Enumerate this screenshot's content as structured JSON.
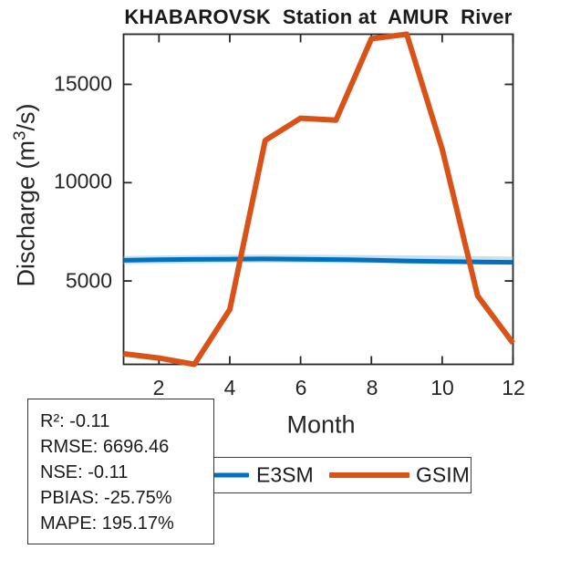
{
  "title": "KHABAROVSK  Station at  AMUR  River",
  "axes": {
    "xlabel": "Month",
    "ylabel_prefix": "Discharge (m",
    "ylabel_superscript": "3",
    "ylabel_suffix": "/s)"
  },
  "chart_data": {
    "type": "line",
    "title": "KHABAROVSK  Station at  AMUR  River",
    "xlabel": "Month",
    "ylabel": "Discharge (m^3/s)",
    "x": [
      1,
      2,
      3,
      4,
      5,
      6,
      7,
      8,
      9,
      10,
      11,
      12
    ],
    "series": [
      {
        "name": "E3SM",
        "color": "#0072BD",
        "width": 5,
        "values": [
          6050,
          6080,
          6100,
          6110,
          6120,
          6110,
          6090,
          6060,
          6020,
          5990,
          5970,
          5950
        ]
      },
      {
        "name": "GSIM",
        "color": "#D95319",
        "width": 6,
        "values": [
          1300,
          1080,
          760,
          3550,
          12150,
          13280,
          13180,
          17320,
          17550,
          11700,
          4250,
          1840
        ]
      }
    ],
    "e3sm_band": {
      "color": "#9cc7e6",
      "width": 9,
      "opacity": 0.55,
      "values": [
        6060,
        6090,
        6110,
        6125,
        6135,
        6125,
        6115,
        6105,
        6095,
        6080,
        6050,
        6030
      ]
    },
    "xlim": [
      1,
      12
    ],
    "ylim": [
      760,
      17550
    ],
    "xticks": [
      2,
      4,
      6,
      8,
      10,
      12
    ],
    "xtick_labels": [
      "2",
      "4",
      "6",
      "8",
      "10",
      "12"
    ],
    "yticks": [
      5000,
      10000,
      15000
    ],
    "ytick_labels": [
      "5000",
      "10000",
      "15000"
    ],
    "grid": false,
    "legend_position": "below-axis",
    "axis_color": "#262626"
  },
  "legend": {
    "items": [
      {
        "label": "E3SM",
        "color": "#0072BD"
      },
      {
        "label": "GSIM",
        "color": "#D95319"
      }
    ]
  },
  "stats_box": {
    "lines": [
      "R²: -0.11",
      "RMSE: 6696.46",
      "NSE: -0.11",
      "PBIAS: -25.75%",
      "MAPE: 195.17%"
    ]
  },
  "colors": {
    "background": "#ffffff",
    "axis": "#262626"
  }
}
